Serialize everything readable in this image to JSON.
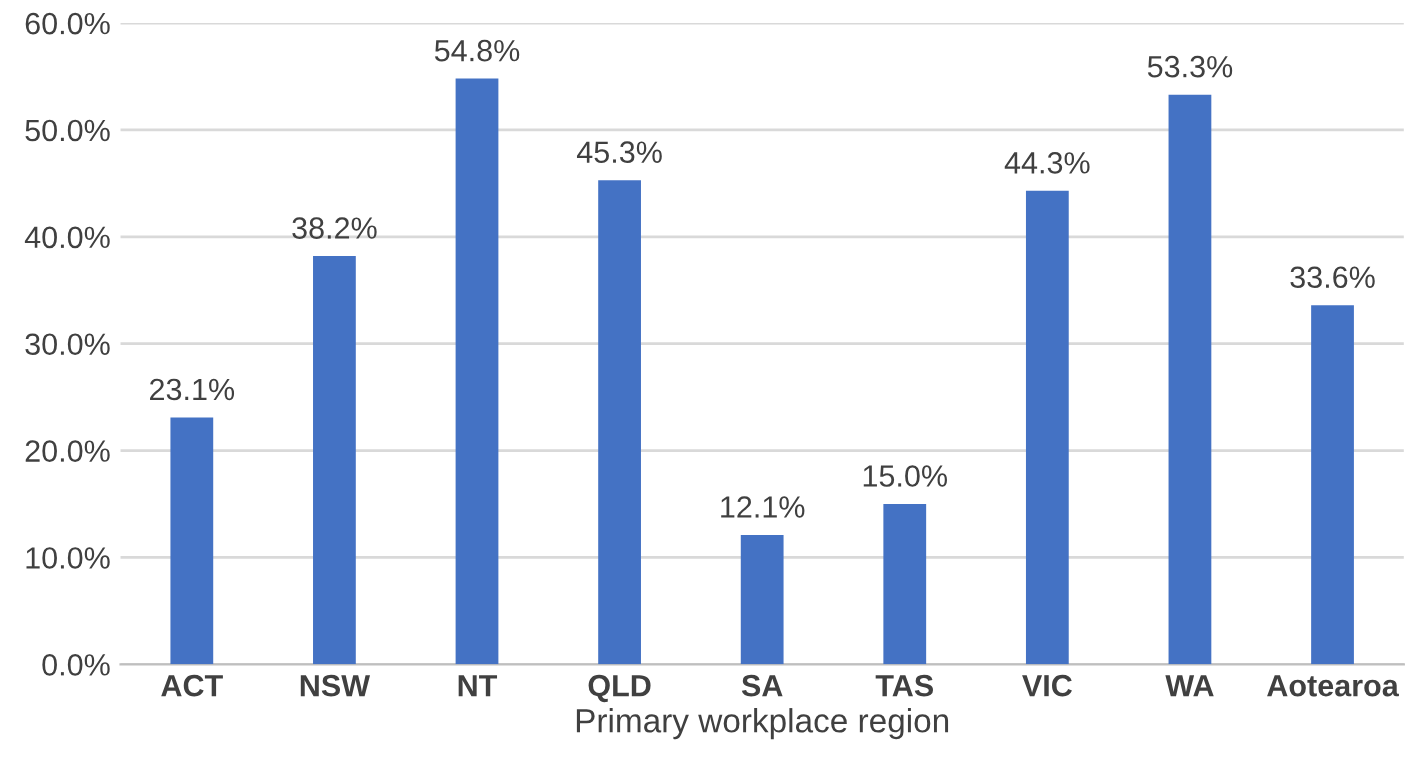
{
  "chart_data": {
    "type": "bar",
    "xlabel": "Primary workplace region",
    "categories": [
      "ACT",
      "NSW",
      "NT",
      "QLD",
      "SA",
      "TAS",
      "VIC",
      "WA",
      "Aotearoa"
    ],
    "values": [
      23.1,
      38.2,
      54.8,
      45.3,
      12.1,
      15.0,
      44.3,
      53.3,
      33.6
    ],
    "value_labels": [
      "23.1%",
      "38.2%",
      "54.8%",
      "45.3%",
      "12.1%",
      "15.0%",
      "44.3%",
      "53.3%",
      "33.6%"
    ],
    "color": "#4472c4",
    "ylim": [
      0,
      60
    ],
    "yticks": [
      {
        "value": 0,
        "label": "0.0%"
      },
      {
        "value": 10,
        "label": "10.0%"
      },
      {
        "value": 20,
        "label": "20.0%"
      },
      {
        "value": 30,
        "label": "30.0%"
      },
      {
        "value": 40,
        "label": "40.0%"
      },
      {
        "value": 50,
        "label": "50.0%"
      },
      {
        "value": 60,
        "label": "60.0%"
      }
    ],
    "grid": "y"
  }
}
